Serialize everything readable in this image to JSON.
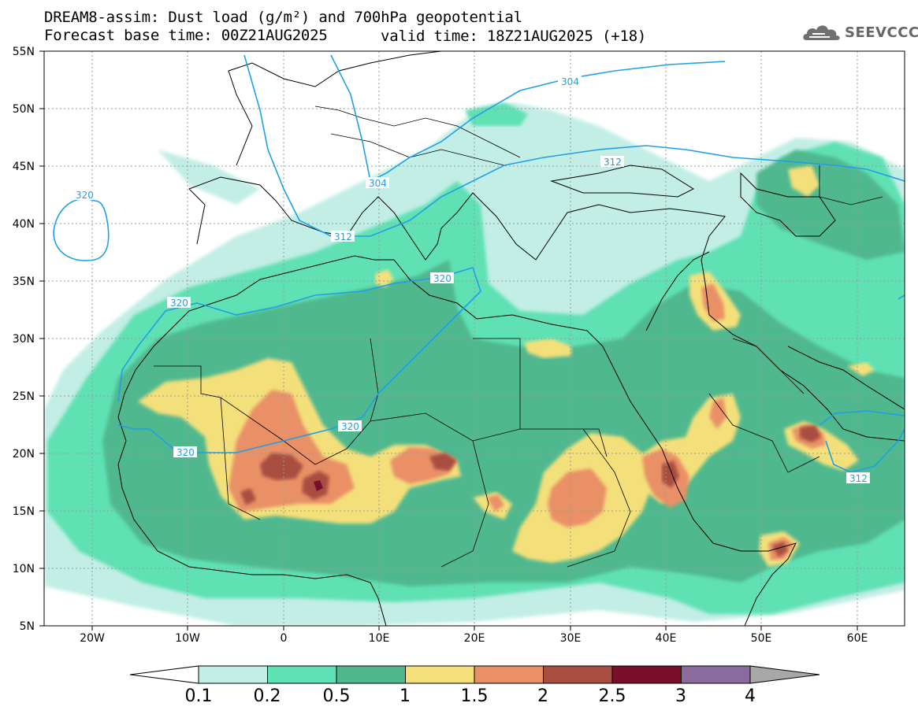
{
  "header": {
    "title_line1": "DREAM8-assim: Dust load (g/m²) and 700hPa geopotential",
    "title_line2": "Forecast base time: 00Z21AUG2025",
    "valid_time": "valid time: 18Z21AUG2025 (+18)",
    "logo_text": "SEEVCCC"
  },
  "map": {
    "lon_range": [
      -25,
      65
    ],
    "lat_range": [
      5,
      55
    ],
    "lat_labels": [
      "55N",
      "50N",
      "45N",
      "40N",
      "35N",
      "30N",
      "25N",
      "20N",
      "15N",
      "10N",
      "5N"
    ],
    "lon_labels": [
      "20W",
      "10W",
      "0",
      "10E",
      "20E",
      "30E",
      "40E",
      "50E",
      "60E"
    ],
    "contour_labels": [
      "304",
      "304",
      "312",
      "312",
      "312",
      "320",
      "320",
      "320",
      "320",
      "320"
    ]
  },
  "legend": {
    "levels": [
      "0.1",
      "0.2",
      "0.5",
      "1",
      "1.5",
      "2",
      "2.5",
      "3",
      "4"
    ],
    "colors": [
      "#c2eee5",
      "#5ee1b4",
      "#50b88e",
      "#f4e07a",
      "#e99066",
      "#a84e41",
      "#7a0f2b",
      "#8b6a9e"
    ],
    "under_color": "#ffffff",
    "over_color": "#a8a8a8"
  }
}
